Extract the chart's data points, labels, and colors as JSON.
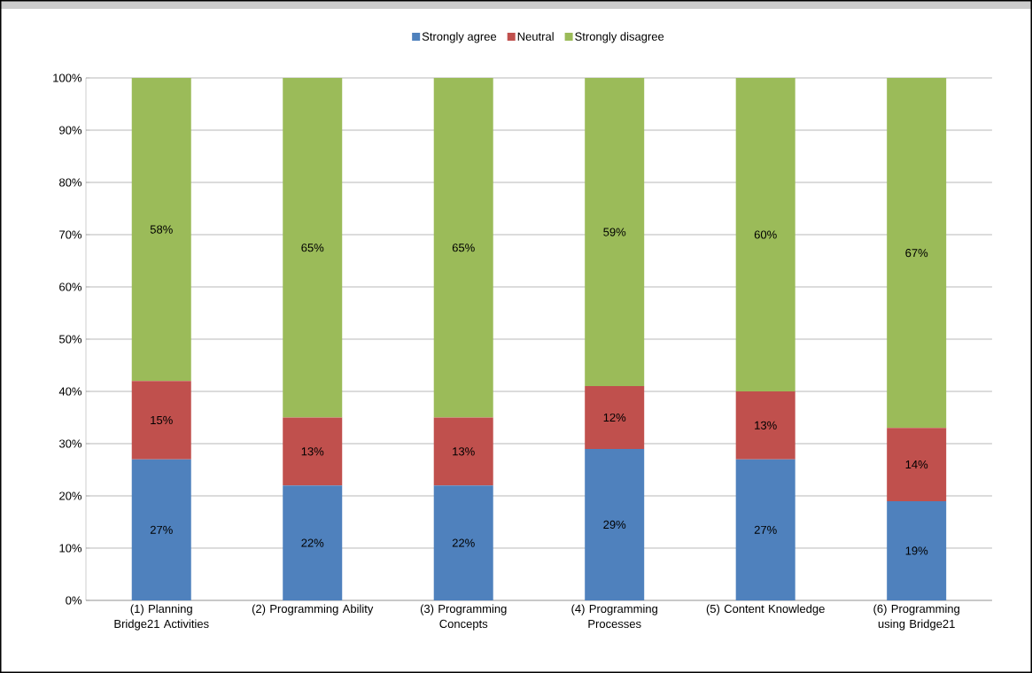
{
  "chart_data": {
    "type": "bar",
    "stacked": true,
    "categories": [
      "(1) Planning Bridge21 Activities",
      "(2) Programming Ability",
      "(3) Programming Concepts",
      "(4) Programming Processes",
      "(5) Content Knowledge",
      "(6) Programming using Bridge21"
    ],
    "series": [
      {
        "name": "Strongly agree",
        "color": "#4f81bd",
        "values": [
          27,
          22,
          22,
          29,
          27,
          19
        ],
        "value_labels": [
          "27%",
          "22%",
          "22%",
          "29%",
          "27%",
          "19%"
        ]
      },
      {
        "name": "Neutral",
        "color": "#c0504d",
        "values": [
          15,
          13,
          13,
          12,
          13,
          14
        ],
        "value_labels": [
          "15%",
          "13%",
          "13%",
          "12%",
          "13%",
          "14%"
        ]
      },
      {
        "name": "Strongly disagree",
        "color": "#9bbb59",
        "values": [
          58,
          65,
          65,
          59,
          60,
          67
        ],
        "value_labels": [
          "58%",
          "65%",
          "65%",
          "59%",
          "60%",
          "67%"
        ]
      }
    ],
    "ylim": [
      0,
      100
    ],
    "yticks": [
      {
        "value": 0,
        "label": "0%"
      },
      {
        "value": 10,
        "label": "10%"
      },
      {
        "value": 20,
        "label": "20%"
      },
      {
        "value": 30,
        "label": "30%"
      },
      {
        "value": 40,
        "label": "40%"
      },
      {
        "value": 50,
        "label": "50%"
      },
      {
        "value": 60,
        "label": "60%"
      },
      {
        "value": 70,
        "label": "70%"
      },
      {
        "value": 80,
        "label": "80%"
      },
      {
        "value": 90,
        "label": "90%"
      },
      {
        "value": 100,
        "label": "100%"
      }
    ],
    "grid": "y",
    "legend": "top"
  }
}
